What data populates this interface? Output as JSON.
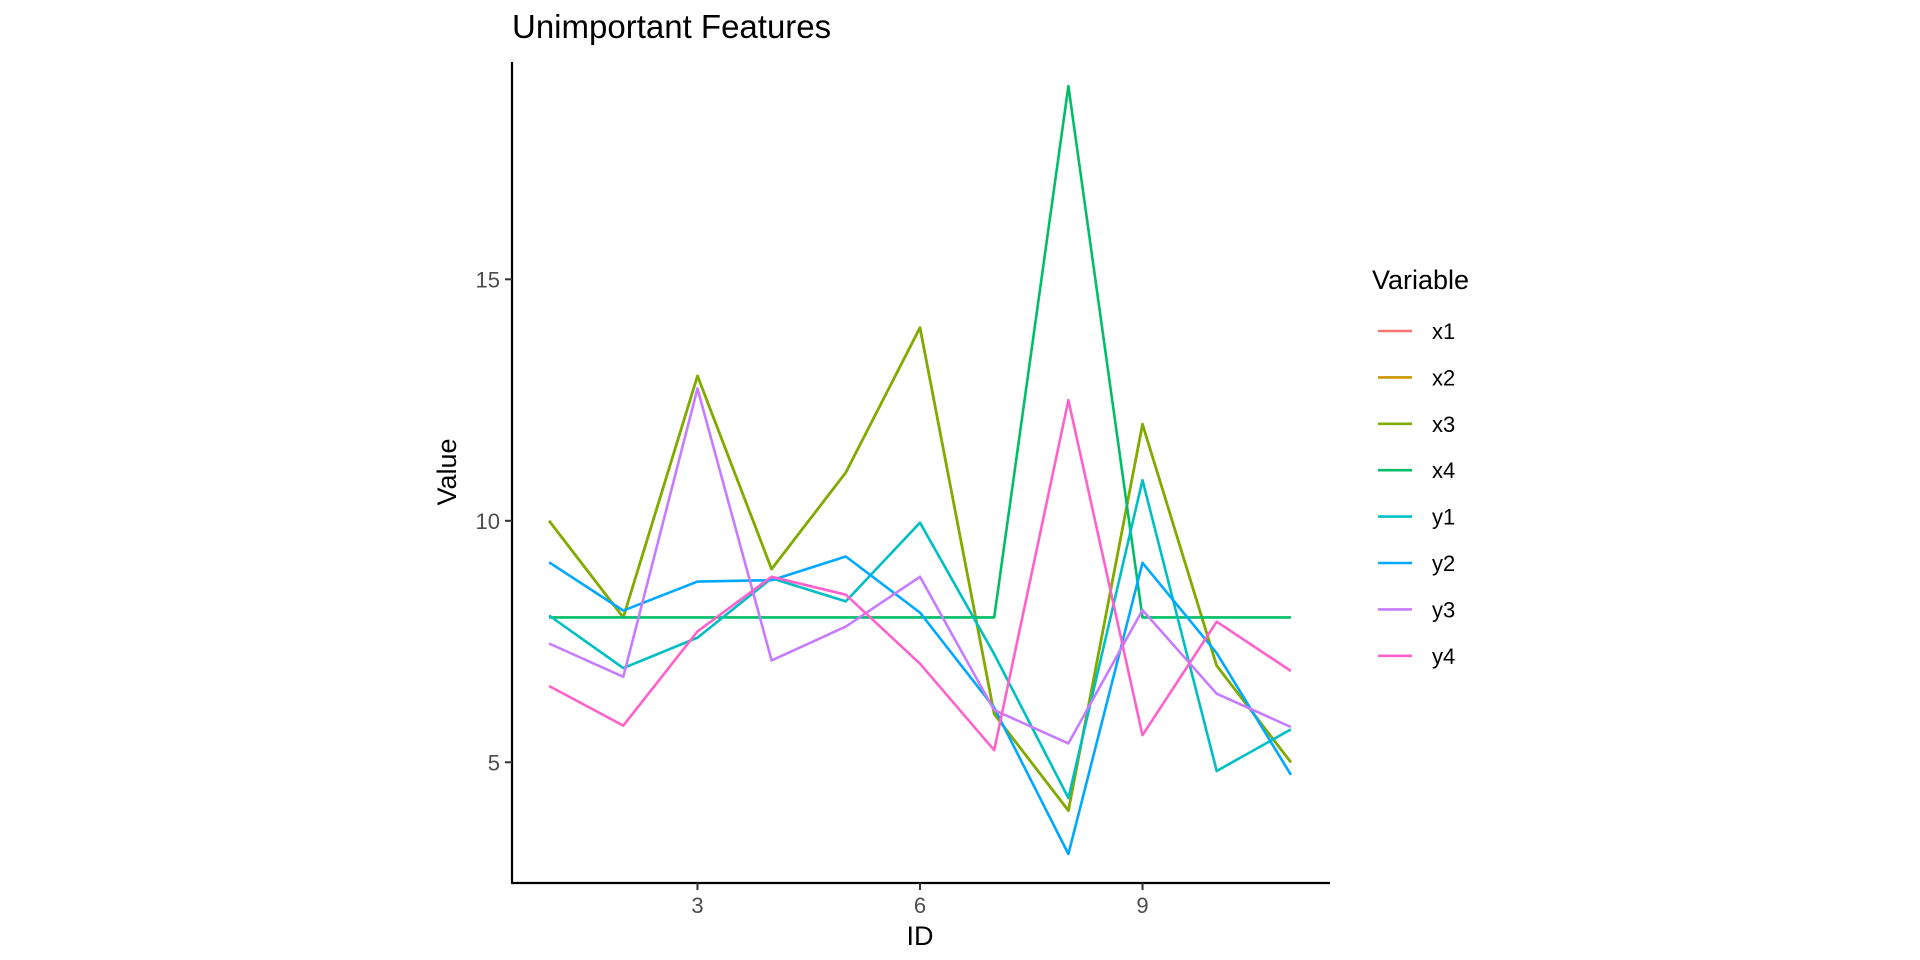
{
  "chart_data": {
    "type": "line",
    "title": "Unimportant Features",
    "xlabel": "ID",
    "ylabel": "Value",
    "legend_title": "Variable",
    "legend_position": "right",
    "grid": false,
    "xlim": [
      0.5,
      11.5
    ],
    "ylim": [
      2.5,
      19.5
    ],
    "x_ticks": [
      3,
      6,
      9
    ],
    "y_ticks": [
      5,
      10,
      15
    ],
    "x": [
      1,
      2,
      3,
      4,
      5,
      6,
      7,
      8,
      9,
      10,
      11
    ],
    "series": [
      {
        "name": "x1",
        "color": "#F8766D",
        "values": [
          10,
          8,
          13,
          9,
          11,
          14,
          6,
          4,
          12,
          7,
          5
        ]
      },
      {
        "name": "x2",
        "color": "#CD9600",
        "values": [
          10,
          8,
          13,
          9,
          11,
          14,
          6,
          4,
          12,
          7,
          5
        ]
      },
      {
        "name": "x3",
        "color": "#7CAE00",
        "values": [
          10,
          8,
          13,
          9,
          11,
          14,
          6,
          4,
          12,
          7,
          5
        ]
      },
      {
        "name": "x4",
        "color": "#00BE67",
        "values": [
          8,
          8,
          8,
          8,
          8,
          8,
          8,
          19,
          8,
          8,
          8
        ]
      },
      {
        "name": "y1",
        "color": "#00BFC4",
        "values": [
          8.04,
          6.95,
          7.58,
          8.81,
          8.33,
          9.96,
          7.24,
          4.26,
          10.84,
          4.82,
          5.68
        ]
      },
      {
        "name": "y2",
        "color": "#00A9FF",
        "values": [
          9.14,
          8.14,
          8.74,
          8.77,
          9.26,
          8.1,
          6.13,
          3.1,
          9.13,
          7.26,
          4.74
        ]
      },
      {
        "name": "y3",
        "color": "#C77CFF",
        "values": [
          7.46,
          6.77,
          12.74,
          7.11,
          7.81,
          8.84,
          6.08,
          5.39,
          8.15,
          6.42,
          5.73
        ]
      },
      {
        "name": "y4",
        "color": "#FF61CC",
        "values": [
          6.58,
          5.76,
          7.71,
          8.84,
          8.47,
          7.04,
          5.25,
          12.5,
          5.56,
          7.91,
          6.89
        ]
      }
    ]
  }
}
